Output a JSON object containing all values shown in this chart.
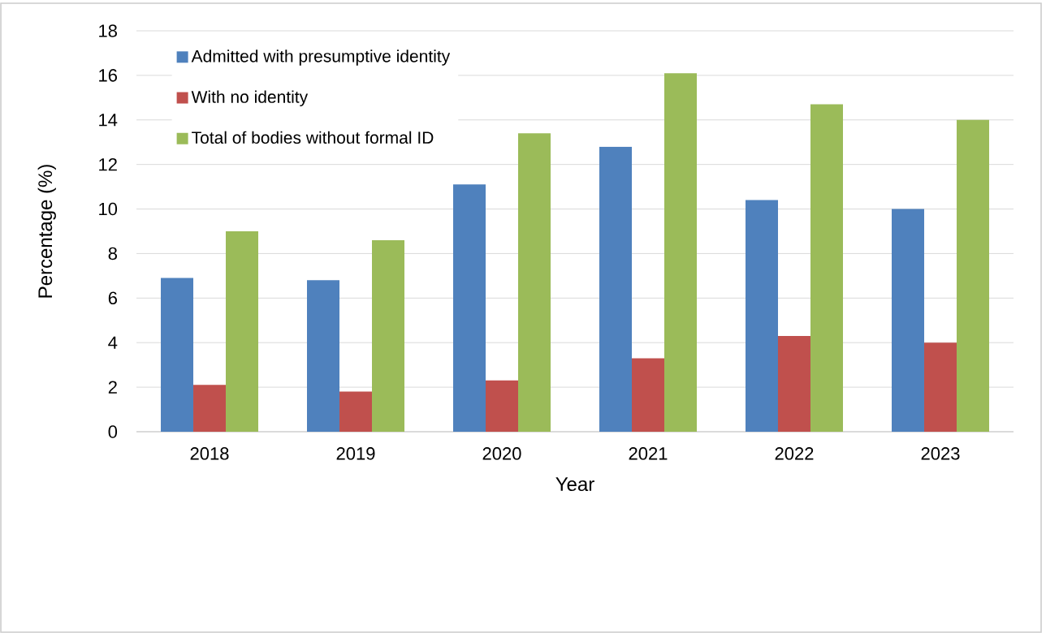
{
  "chart_data": {
    "type": "bar",
    "xlabel": "Year",
    "ylabel": "Percentage (%)",
    "categories": [
      "2018",
      "2019",
      "2020",
      "2021",
      "2022",
      "2023"
    ],
    "series": [
      {
        "name": "Admitted with presumptive identity",
        "color": "#4f81bd",
        "values": [
          6.9,
          6.8,
          11.1,
          12.8,
          10.4,
          10.0
        ]
      },
      {
        "name": "With no identity",
        "color": "#c0504d",
        "values": [
          2.1,
          1.8,
          2.3,
          3.3,
          4.3,
          4.0
        ]
      },
      {
        "name": "Total of bodies without formal ID",
        "color": "#9bbb59",
        "values": [
          9.0,
          8.6,
          13.4,
          16.1,
          14.7,
          14.0
        ]
      }
    ],
    "ylim": [
      0,
      18
    ],
    "yticks": [
      0,
      2,
      4,
      6,
      8,
      10,
      12,
      14,
      16,
      18
    ],
    "grid": "y",
    "legend": "top left"
  }
}
